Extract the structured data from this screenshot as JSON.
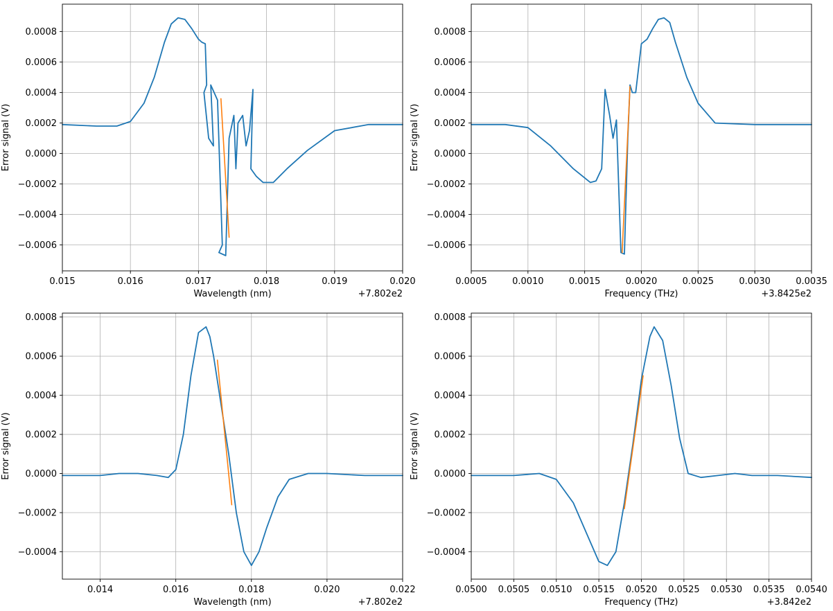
{
  "figure": {
    "line_color": "#1f77b4",
    "fit_color": "#ff7f0e",
    "grid_color": "#b0b0b0",
    "panels": [
      "top-left",
      "top-right",
      "bottom-left",
      "bottom-right"
    ]
  },
  "chart_data": [
    {
      "type": "line",
      "position": "top-left",
      "xlabel": "Wavelength (nm)",
      "ylabel": "Error signal (V)",
      "offset_text": "+7.802e2",
      "xlim": [
        0.015,
        0.02
      ],
      "ylim": [
        -0.00077,
        0.00098
      ],
      "xticks": [
        0.015,
        0.016,
        0.017,
        0.018,
        0.019,
        0.02
      ],
      "xtick_labels": [
        "0.015",
        "0.016",
        "0.017",
        "0.018",
        "0.019",
        "0.020"
      ],
      "yticks": [
        -0.0006,
        -0.0004,
        -0.0002,
        0.0,
        0.0002,
        0.0004,
        0.0006,
        0.0008
      ],
      "ytick_labels": [
        "−0.0006",
        "−0.0004",
        "−0.0002",
        "0.0000",
        "0.0002",
        "0.0004",
        "0.0006",
        "0.0008"
      ],
      "grid": true,
      "series": [
        {
          "role": "data",
          "x": [
            0.015,
            0.0155,
            0.0158,
            0.016,
            0.0162,
            0.01635,
            0.0165,
            0.0166,
            0.0167,
            0.0168,
            0.0169,
            0.017,
            0.01705,
            0.0171,
            0.01712,
            0.01708,
            0.01715,
            0.01722,
            0.01718,
            0.01728,
            0.01735,
            0.0173,
            0.0174,
            0.01745,
            0.01752,
            0.01755,
            0.01758,
            0.01765,
            0.0177,
            0.01775,
            0.0178,
            0.01777,
            0.01785,
            0.01795,
            0.0181,
            0.0183,
            0.0186,
            0.019,
            0.0195,
            0.02
          ],
          "y": [
            0.00019,
            0.00018,
            0.00018,
            0.00021,
            0.00033,
            0.0005,
            0.00073,
            0.00085,
            0.00089,
            0.00088,
            0.00082,
            0.00075,
            0.00073,
            0.00072,
            0.00045,
            0.0004,
            0.0001,
            5e-05,
            0.00045,
            0.00035,
            -0.0006,
            -0.00065,
            -0.00067,
            0.0001,
            0.00025,
            -0.0001,
            0.0002,
            0.00025,
            5e-05,
            0.00015,
            0.00042,
            -0.0001,
            -0.00015,
            -0.00019,
            -0.00019,
            -0.0001,
            2e-05,
            0.00015,
            0.00019,
            0.00019
          ]
        },
        {
          "role": "fit",
          "x": [
            0.01733,
            0.01745
          ],
          "y": [
            0.00036,
            -0.00055
          ]
        }
      ]
    },
    {
      "type": "line",
      "position": "top-right",
      "xlabel": "Frequency (THz)",
      "ylabel": "Error signal (V)",
      "offset_text": "+3.8425e2",
      "xlim": [
        0.0005,
        0.0035
      ],
      "ylim": [
        -0.00077,
        0.00098
      ],
      "xticks": [
        0.0005,
        0.001,
        0.0015,
        0.002,
        0.0025,
        0.003,
        0.0035
      ],
      "xtick_labels": [
        "0.0005",
        "0.0010",
        "0.0015",
        "0.0020",
        "0.0025",
        "0.0030",
        "0.0035"
      ],
      "yticks": [
        -0.0006,
        -0.0004,
        -0.0002,
        0.0,
        0.0002,
        0.0004,
        0.0006,
        0.0008
      ],
      "ytick_labels": [
        "−0.0006",
        "−0.0004",
        "−0.0002",
        "0.0000",
        "0.0002",
        "0.0004",
        "0.0006",
        "0.0008"
      ],
      "grid": true,
      "series": [
        {
          "role": "data",
          "x": [
            0.0005,
            0.0008,
            0.001,
            0.0012,
            0.0014,
            0.00155,
            0.0016,
            0.00165,
            0.00168,
            0.00172,
            0.00175,
            0.00178,
            0.00182,
            0.00185,
            0.00188,
            0.0019,
            0.00192,
            0.00195,
            0.002,
            0.00205,
            0.0021,
            0.00215,
            0.0022,
            0.00225,
            0.0023,
            0.0024,
            0.0025,
            0.00265,
            0.003,
            0.0035
          ],
          "y": [
            0.00019,
            0.00019,
            0.00017,
            5e-05,
            -0.0001,
            -0.00019,
            -0.00018,
            -0.0001,
            0.00042,
            0.00025,
            0.0001,
            0.00022,
            -0.00065,
            -0.00066,
            0.0001,
            0.00045,
            0.0004,
            0.0004,
            0.00072,
            0.00075,
            0.00082,
            0.00088,
            0.00089,
            0.00086,
            0.00073,
            0.0005,
            0.00033,
            0.0002,
            0.00019,
            0.00019
          ]
        },
        {
          "role": "fit",
          "x": [
            0.00183,
            0.0019
          ],
          "y": [
            -0.00065,
            0.00044
          ]
        }
      ]
    },
    {
      "type": "line",
      "position": "bottom-left",
      "xlabel": "Wavelength (nm)",
      "ylabel": "Error signal (V)",
      "offset_text": "+7.802e2",
      "xlim": [
        0.013,
        0.022
      ],
      "ylim": [
        -0.00054,
        0.00082
      ],
      "xticks": [
        0.014,
        0.016,
        0.018,
        0.02,
        0.022
      ],
      "xtick_labels": [
        "0.014",
        "0.016",
        "0.018",
        "0.020",
        "0.022"
      ],
      "yticks": [
        -0.0004,
        -0.0002,
        0.0,
        0.0002,
        0.0004,
        0.0006,
        0.0008
      ],
      "ytick_labels": [
        "−0.0004",
        "−0.0002",
        "0.0000",
        "0.0002",
        "0.0004",
        "0.0006",
        "0.0008"
      ],
      "grid": true,
      "series": [
        {
          "role": "data",
          "x": [
            0.013,
            0.014,
            0.0145,
            0.015,
            0.0155,
            0.0158,
            0.016,
            0.0162,
            0.0164,
            0.0166,
            0.0168,
            0.0169,
            0.017,
            0.0172,
            0.0174,
            0.0176,
            0.0178,
            0.018,
            0.0182,
            0.0184,
            0.0187,
            0.019,
            0.0195,
            0.02,
            0.021,
            0.022
          ],
          "y": [
            -1e-05,
            -1e-05,
            0.0,
            0.0,
            -1e-05,
            -2e-05,
            2e-05,
            0.0002,
            0.0005,
            0.00072,
            0.00075,
            0.0007,
            0.0006,
            0.00035,
            0.0001,
            -0.0002,
            -0.0004,
            -0.00047,
            -0.0004,
            -0.00028,
            -0.00012,
            -3e-05,
            0.0,
            0.0,
            -1e-05,
            -1e-05
          ]
        },
        {
          "role": "fit",
          "x": [
            0.0171,
            0.01748
          ],
          "y": [
            0.00058,
            -0.00016
          ]
        }
      ]
    },
    {
      "type": "line",
      "position": "bottom-right",
      "xlabel": "Frequency (THz)",
      "ylabel": "Error signal (V)",
      "offset_text": "+3.842e2",
      "xlim": [
        0.05,
        0.054
      ],
      "ylim": [
        -0.00054,
        0.00082
      ],
      "xticks": [
        0.05,
        0.0505,
        0.051,
        0.0515,
        0.052,
        0.0525,
        0.053,
        0.0535,
        0.054
      ],
      "xtick_labels": [
        "0.0500",
        "0.0505",
        "0.0510",
        "0.0515",
        "0.0520",
        "0.0525",
        "0.0530",
        "0.0535",
        "0.0540"
      ],
      "yticks": [
        -0.0004,
        -0.0002,
        0.0,
        0.0002,
        0.0004,
        0.0006,
        0.0008
      ],
      "ytick_labels": [
        "−0.0004",
        "−0.0002",
        "0.0000",
        "0.0002",
        "0.0004",
        "0.0006",
        "0.0008"
      ],
      "grid": true,
      "series": [
        {
          "role": "data",
          "x": [
            0.05,
            0.0505,
            0.0508,
            0.051,
            0.0512,
            0.0514,
            0.0515,
            0.0516,
            0.0517,
            0.0518,
            0.0519,
            0.052,
            0.0521,
            0.05215,
            0.05225,
            0.05235,
            0.05245,
            0.05255,
            0.0527,
            0.0529,
            0.0531,
            0.0533,
            0.0536,
            0.054
          ],
          "y": [
            -1e-05,
            -1e-05,
            0.0,
            -3e-05,
            -0.00015,
            -0.00035,
            -0.00045,
            -0.00047,
            -0.0004,
            -0.00015,
            0.00015,
            0.00048,
            0.0007,
            0.00075,
            0.00068,
            0.00045,
            0.00018,
            0.0,
            -2e-05,
            -1e-05,
            0.0,
            -1e-05,
            -1e-05,
            -2e-05
          ]
        },
        {
          "role": "fit",
          "x": [
            0.0518,
            0.05202
          ],
          "y": [
            -0.00018,
            0.0005
          ]
        }
      ]
    }
  ]
}
